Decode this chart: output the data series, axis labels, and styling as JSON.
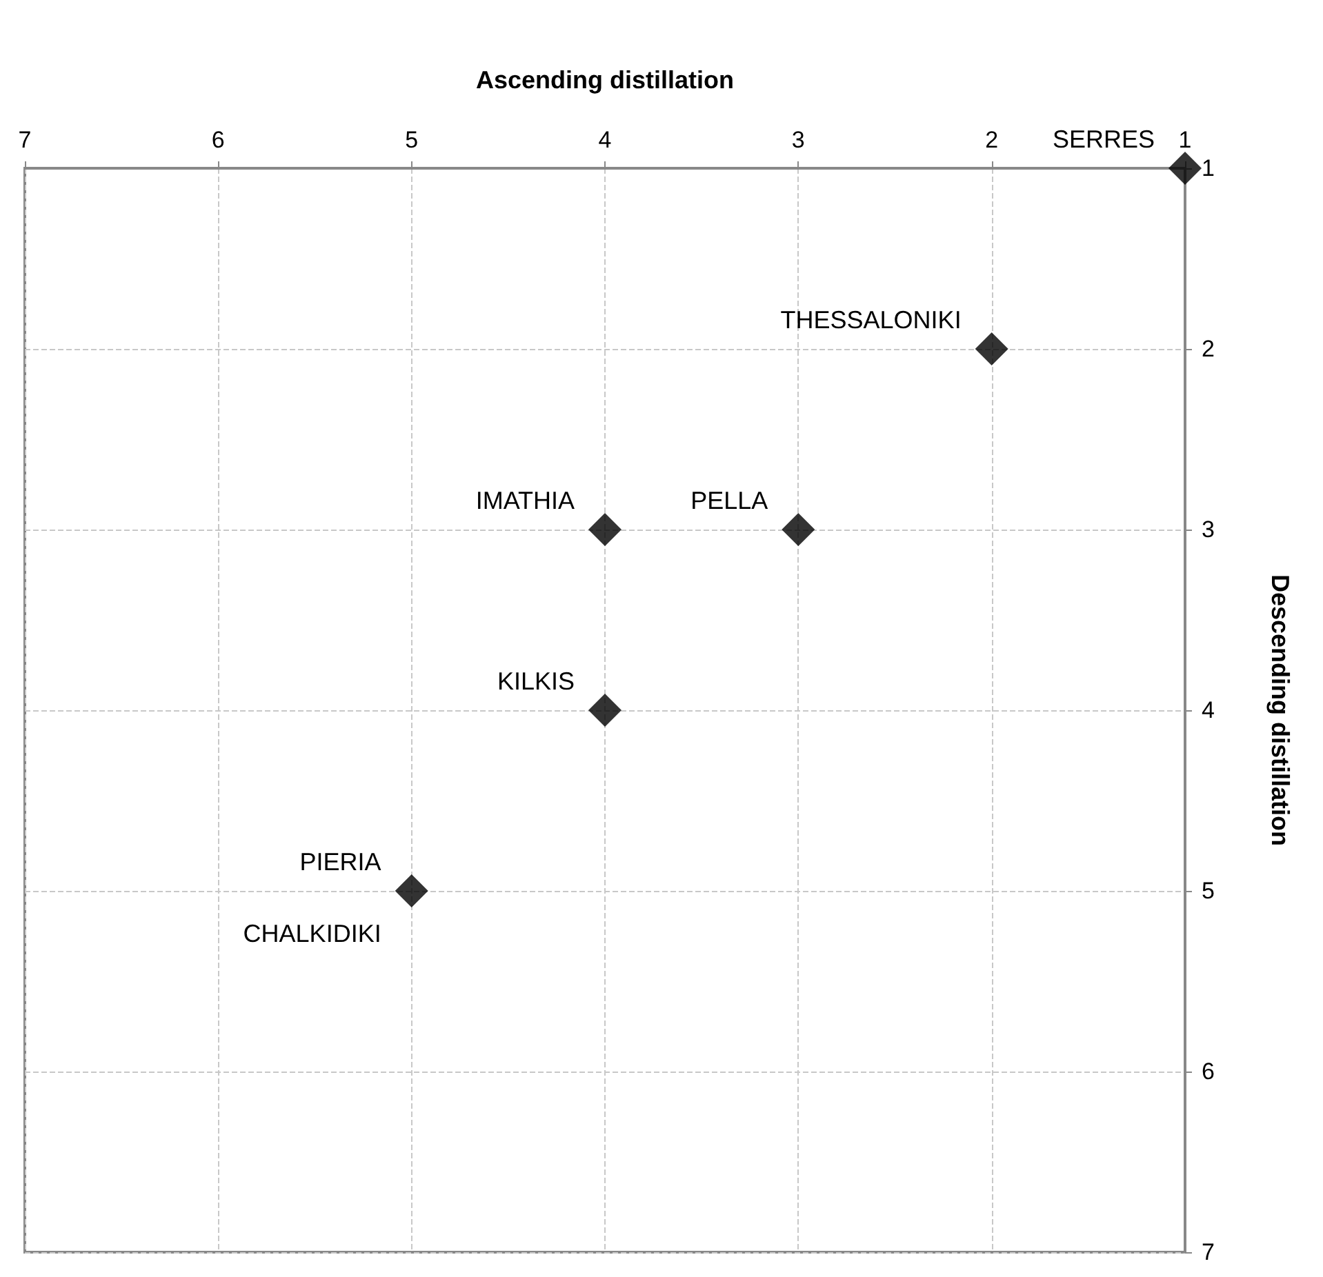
{
  "chart_data": {
    "type": "scatter",
    "xlabel": "Ascending distillation",
    "ylabel": "Descending distillation",
    "x": [
      1,
      2,
      3,
      4,
      4,
      5
    ],
    "values": [
      1,
      2,
      3,
      3,
      4,
      5
    ],
    "color": "#000000",
    "marker": "diamond",
    "xlim": [
      7,
      1
    ],
    "xticks": [
      7,
      6,
      5,
      4,
      3,
      2,
      1
    ],
    "ylim": [
      7,
      1
    ],
    "yticks": [
      1,
      2,
      3,
      4,
      5,
      6,
      7
    ],
    "grid": true,
    "annotations": [
      {
        "text": "SERRES",
        "x": 1,
        "y": 1
      },
      {
        "text": "THESSALONIKI",
        "x": 2,
        "y": 2
      },
      {
        "text": "PELLA",
        "x": 3,
        "y": 3
      },
      {
        "text": "IMATHIA",
        "x": 4,
        "y": 3
      },
      {
        "text": "KILKIS",
        "x": 4,
        "y": 4
      },
      {
        "text": "PIERIA",
        "x": 5,
        "y": 5
      },
      {
        "text": "CHALKIDIKI",
        "x": 5,
        "y": 5
      }
    ]
  }
}
